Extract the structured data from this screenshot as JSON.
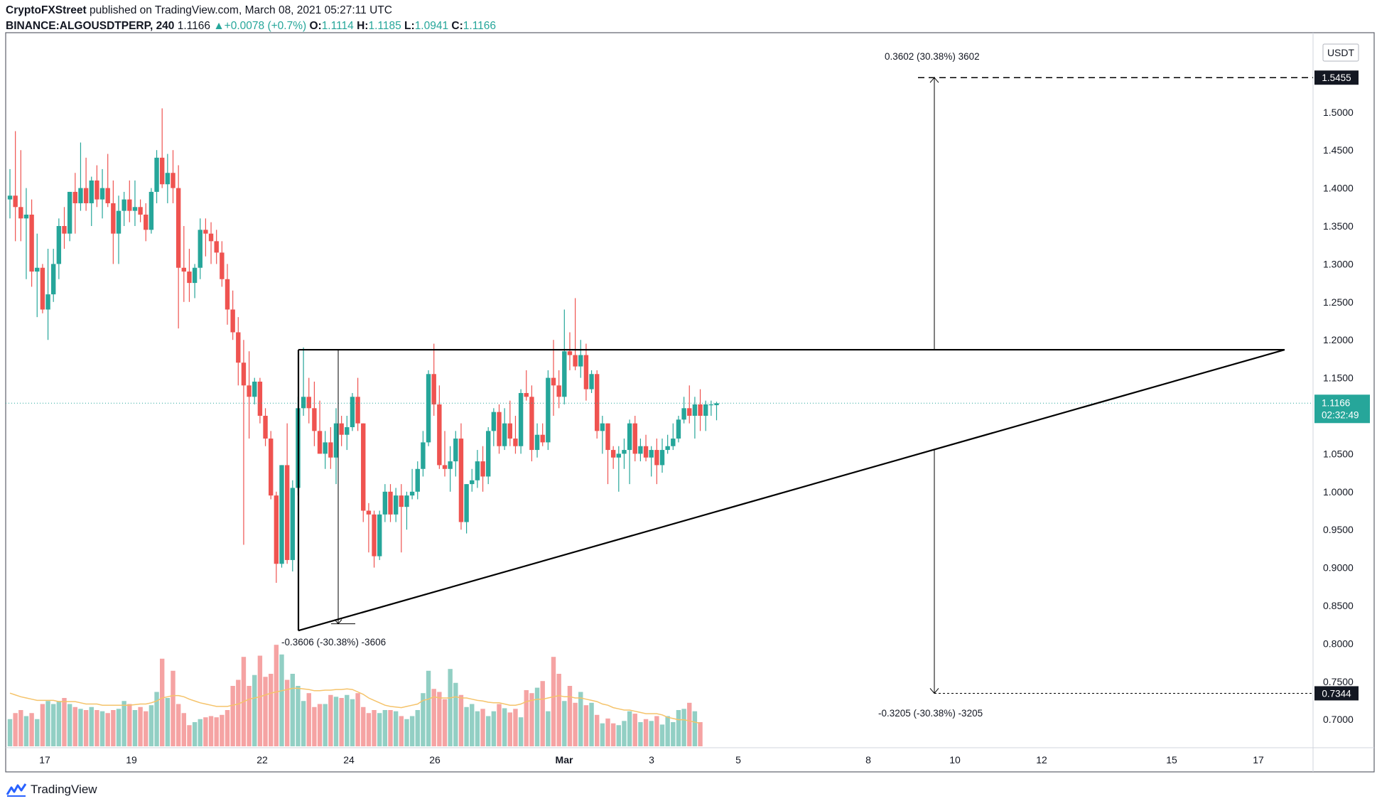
{
  "header": {
    "publisher": "CryptoFXStreet",
    "published_text": "published on TradingView.com, March 08, 2021 05:27:11 UTC",
    "symbol": "BINANCE:ALGOUSDTPERP, 240",
    "last": "1.1166",
    "change": "+0.0078 (+0.7%)",
    "o_label": "O:",
    "o": "1.1114",
    "h_label": "H:",
    "h": "1.1185",
    "l_label": "L:",
    "l": "1.0941",
    "c_label": "C:",
    "c": "1.1166"
  },
  "footer": {
    "brand": "TradingView"
  },
  "colors": {
    "up": "#26a69a",
    "down": "#ef5350",
    "up_vol": "#92cfc4",
    "down_vol": "#f5a3a3",
    "ma": "#f5c36a",
    "accent": "#26a69a"
  },
  "chart_data": {
    "type": "candlestick",
    "currency": "USDT",
    "y_ticks": [
      "1.5000",
      "1.4500",
      "1.4000",
      "1.3500",
      "1.3000",
      "1.2500",
      "1.2000",
      "1.1500",
      "1.0500",
      "1.0000",
      "0.9500",
      "0.9000",
      "0.8500",
      "0.8000",
      "0.7500",
      "0.7000"
    ],
    "x_ticks": [
      "17",
      "19",
      "22",
      "24",
      "26",
      "Mar",
      "3",
      "5",
      "8",
      "10",
      "12",
      "15",
      "17"
    ],
    "ylim": [
      0.655,
      1.595
    ],
    "current_price": "1.1166",
    "countdown": "02:32:49",
    "target_up_label": "1.5455",
    "target_down_label": "0.7344",
    "measure_up_text": "0.3602 (30.38%) 3602",
    "measure_flagpole_text": "-0.3606 (-30.38%) -3606",
    "measure_down_text": "-0.3205 (-30.38%) -3205",
    "candles": [
      {
        "o": 1.385,
        "h": 1.425,
        "l": 1.36,
        "c": 1.39
      },
      {
        "o": 1.39,
        "h": 1.475,
        "l": 1.33,
        "c": 1.375
      },
      {
        "o": 1.375,
        "h": 1.45,
        "l": 1.33,
        "c": 1.36
      },
      {
        "o": 1.36,
        "h": 1.4,
        "l": 1.28,
        "c": 1.365
      },
      {
        "o": 1.365,
        "h": 1.385,
        "l": 1.27,
        "c": 1.29
      },
      {
        "o": 1.29,
        "h": 1.34,
        "l": 1.23,
        "c": 1.295
      },
      {
        "o": 1.295,
        "h": 1.3,
        "l": 1.235,
        "c": 1.24
      },
      {
        "o": 1.24,
        "h": 1.32,
        "l": 1.2,
        "c": 1.26
      },
      {
        "o": 1.26,
        "h": 1.32,
        "l": 1.25,
        "c": 1.3
      },
      {
        "o": 1.3,
        "h": 1.36,
        "l": 1.28,
        "c": 1.35
      },
      {
        "o": 1.35,
        "h": 1.375,
        "l": 1.32,
        "c": 1.34
      },
      {
        "o": 1.34,
        "h": 1.395,
        "l": 1.33,
        "c": 1.395
      },
      {
        "o": 1.395,
        "h": 1.42,
        "l": 1.34,
        "c": 1.38
      },
      {
        "o": 1.38,
        "h": 1.46,
        "l": 1.37,
        "c": 1.4
      },
      {
        "o": 1.4,
        "h": 1.44,
        "l": 1.37,
        "c": 1.38
      },
      {
        "o": 1.38,
        "h": 1.415,
        "l": 1.35,
        "c": 1.41
      },
      {
        "o": 1.41,
        "h": 1.43,
        "l": 1.375,
        "c": 1.385
      },
      {
        "o": 1.385,
        "h": 1.425,
        "l": 1.36,
        "c": 1.4
      },
      {
        "o": 1.4,
        "h": 1.445,
        "l": 1.375,
        "c": 1.38
      },
      {
        "o": 1.38,
        "h": 1.41,
        "l": 1.3,
        "c": 1.34
      },
      {
        "o": 1.34,
        "h": 1.39,
        "l": 1.3,
        "c": 1.37
      },
      {
        "o": 1.37,
        "h": 1.395,
        "l": 1.35,
        "c": 1.385
      },
      {
        "o": 1.385,
        "h": 1.41,
        "l": 1.355,
        "c": 1.37
      },
      {
        "o": 1.37,
        "h": 1.41,
        "l": 1.35,
        "c": 1.375
      },
      {
        "o": 1.375,
        "h": 1.385,
        "l": 1.355,
        "c": 1.365
      },
      {
        "o": 1.365,
        "h": 1.38,
        "l": 1.33,
        "c": 1.345
      },
      {
        "o": 1.345,
        "h": 1.4,
        "l": 1.34,
        "c": 1.395
      },
      {
        "o": 1.395,
        "h": 1.45,
        "l": 1.38,
        "c": 1.44
      },
      {
        "o": 1.44,
        "h": 1.505,
        "l": 1.4,
        "c": 1.405
      },
      {
        "o": 1.405,
        "h": 1.445,
        "l": 1.38,
        "c": 1.42
      },
      {
        "o": 1.42,
        "h": 1.45,
        "l": 1.38,
        "c": 1.4
      },
      {
        "o": 1.4,
        "h": 1.43,
        "l": 1.215,
        "c": 1.295
      },
      {
        "o": 1.295,
        "h": 1.35,
        "l": 1.25,
        "c": 1.29
      },
      {
        "o": 1.29,
        "h": 1.32,
        "l": 1.25,
        "c": 1.275
      },
      {
        "o": 1.275,
        "h": 1.3,
        "l": 1.255,
        "c": 1.295
      },
      {
        "o": 1.295,
        "h": 1.36,
        "l": 1.28,
        "c": 1.345
      },
      {
        "o": 1.345,
        "h": 1.36,
        "l": 1.31,
        "c": 1.34
      },
      {
        "o": 1.34,
        "h": 1.355,
        "l": 1.3,
        "c": 1.33
      },
      {
        "o": 1.33,
        "h": 1.345,
        "l": 1.3,
        "c": 1.315
      },
      {
        "o": 1.315,
        "h": 1.33,
        "l": 1.27,
        "c": 1.28
      },
      {
        "o": 1.28,
        "h": 1.3,
        "l": 1.22,
        "c": 1.24
      },
      {
        "o": 1.24,
        "h": 1.265,
        "l": 1.2,
        "c": 1.21
      },
      {
        "o": 1.21,
        "h": 1.23,
        "l": 1.14,
        "c": 1.17
      },
      {
        "o": 1.17,
        "h": 1.2,
        "l": 0.93,
        "c": 1.14
      },
      {
        "o": 1.14,
        "h": 1.185,
        "l": 1.07,
        "c": 1.125
      },
      {
        "o": 1.125,
        "h": 1.15,
        "l": 1.115,
        "c": 1.145
      },
      {
        "o": 1.145,
        "h": 1.15,
        "l": 1.09,
        "c": 1.1
      },
      {
        "o": 1.1,
        "h": 1.11,
        "l": 1.06,
        "c": 1.07
      },
      {
        "o": 1.07,
        "h": 1.08,
        "l": 0.99,
        "c": 0.995
      },
      {
        "o": 0.995,
        "h": 1.0,
        "l": 0.88,
        "c": 0.905
      },
      {
        "o": 0.905,
        "h": 1.035,
        "l": 0.9,
        "c": 1.035
      },
      {
        "o": 1.035,
        "h": 1.09,
        "l": 0.905,
        "c": 0.91
      },
      {
        "o": 0.91,
        "h": 1.015,
        "l": 0.895,
        "c": 1.005
      },
      {
        "o": 1.005,
        "h": 1.125,
        "l": 0.995,
        "c": 1.11
      },
      {
        "o": 1.11,
        "h": 1.19,
        "l": 1.1,
        "c": 1.125
      },
      {
        "o": 1.125,
        "h": 1.15,
        "l": 1.09,
        "c": 1.11
      },
      {
        "o": 1.11,
        "h": 1.145,
        "l": 1.06,
        "c": 1.08
      },
      {
        "o": 1.08,
        "h": 1.12,
        "l": 1.05,
        "c": 1.05
      },
      {
        "o": 1.05,
        "h": 1.08,
        "l": 1.03,
        "c": 1.065
      },
      {
        "o": 1.065,
        "h": 1.085,
        "l": 1.03,
        "c": 1.045
      },
      {
        "o": 1.045,
        "h": 1.11,
        "l": 1.01,
        "c": 1.09
      },
      {
        "o": 1.09,
        "h": 1.1,
        "l": 1.06,
        "c": 1.075
      },
      {
        "o": 1.075,
        "h": 1.1,
        "l": 1.055,
        "c": 1.085
      },
      {
        "o": 1.085,
        "h": 1.13,
        "l": 1.08,
        "c": 1.125
      },
      {
        "o": 1.125,
        "h": 1.15,
        "l": 1.08,
        "c": 1.09
      },
      {
        "o": 1.09,
        "h": 1.09,
        "l": 0.96,
        "c": 0.975
      },
      {
        "o": 0.975,
        "h": 0.985,
        "l": 0.92,
        "c": 0.97
      },
      {
        "o": 0.97,
        "h": 0.975,
        "l": 0.9,
        "c": 0.915
      },
      {
        "o": 0.915,
        "h": 0.975,
        "l": 0.91,
        "c": 0.97
      },
      {
        "o": 0.97,
        "h": 1.01,
        "l": 0.96,
        "c": 1.0
      },
      {
        "o": 1.0,
        "h": 1.01,
        "l": 0.96,
        "c": 0.97
      },
      {
        "o": 0.97,
        "h": 1.005,
        "l": 0.96,
        "c": 0.995
      },
      {
        "o": 0.995,
        "h": 1.01,
        "l": 0.92,
        "c": 0.98
      },
      {
        "o": 0.98,
        "h": 1.0,
        "l": 0.95,
        "c": 0.995
      },
      {
        "o": 0.995,
        "h": 1.03,
        "l": 0.99,
        "c": 1.0
      },
      {
        "o": 1.0,
        "h": 1.04,
        "l": 0.99,
        "c": 1.03
      },
      {
        "o": 1.03,
        "h": 1.08,
        "l": 1.02,
        "c": 1.065
      },
      {
        "o": 1.065,
        "h": 1.16,
        "l": 1.06,
        "c": 1.155
      },
      {
        "o": 1.155,
        "h": 1.195,
        "l": 1.1,
        "c": 1.115
      },
      {
        "o": 1.115,
        "h": 1.14,
        "l": 1.03,
        "c": 1.035
      },
      {
        "o": 1.035,
        "h": 1.08,
        "l": 1.02,
        "c": 1.03
      },
      {
        "o": 1.03,
        "h": 1.06,
        "l": 1.0,
        "c": 1.04
      },
      {
        "o": 1.04,
        "h": 1.08,
        "l": 1.02,
        "c": 1.07
      },
      {
        "o": 1.07,
        "h": 1.09,
        "l": 0.95,
        "c": 0.96
      },
      {
        "o": 0.96,
        "h": 1.01,
        "l": 0.945,
        "c": 1.01
      },
      {
        "o": 1.01,
        "h": 1.03,
        "l": 1.0,
        "c": 1.015
      },
      {
        "o": 1.015,
        "h": 1.055,
        "l": 1.005,
        "c": 1.04
      },
      {
        "o": 1.04,
        "h": 1.06,
        "l": 1.0,
        "c": 1.02
      },
      {
        "o": 1.02,
        "h": 1.085,
        "l": 1.01,
        "c": 1.08
      },
      {
        "o": 1.08,
        "h": 1.11,
        "l": 1.06,
        "c": 1.105
      },
      {
        "o": 1.105,
        "h": 1.115,
        "l": 1.05,
        "c": 1.06
      },
      {
        "o": 1.06,
        "h": 1.11,
        "l": 1.055,
        "c": 1.09
      },
      {
        "o": 1.09,
        "h": 1.12,
        "l": 1.06,
        "c": 1.07
      },
      {
        "o": 1.07,
        "h": 1.1,
        "l": 1.05,
        "c": 1.06
      },
      {
        "o": 1.06,
        "h": 1.135,
        "l": 1.05,
        "c": 1.13
      },
      {
        "o": 1.13,
        "h": 1.16,
        "l": 1.12,
        "c": 1.125
      },
      {
        "o": 1.125,
        "h": 1.14,
        "l": 1.04,
        "c": 1.055
      },
      {
        "o": 1.055,
        "h": 1.09,
        "l": 1.045,
        "c": 1.075
      },
      {
        "o": 1.075,
        "h": 1.09,
        "l": 1.06,
        "c": 1.065
      },
      {
        "o": 1.065,
        "h": 1.16,
        "l": 1.055,
        "c": 1.15
      },
      {
        "o": 1.15,
        "h": 1.2,
        "l": 1.1,
        "c": 1.14
      },
      {
        "o": 1.14,
        "h": 1.16,
        "l": 1.11,
        "c": 1.125
      },
      {
        "o": 1.125,
        "h": 1.24,
        "l": 1.115,
        "c": 1.185
      },
      {
        "o": 1.185,
        "h": 1.21,
        "l": 1.16,
        "c": 1.18
      },
      {
        "o": 1.18,
        "h": 1.255,
        "l": 1.16,
        "c": 1.165
      },
      {
        "o": 1.165,
        "h": 1.2,
        "l": 1.15,
        "c": 1.18
      },
      {
        "o": 1.18,
        "h": 1.195,
        "l": 1.12,
        "c": 1.135
      },
      {
        "o": 1.135,
        "h": 1.16,
        "l": 1.13,
        "c": 1.155
      },
      {
        "o": 1.155,
        "h": 1.16,
        "l": 1.07,
        "c": 1.08
      },
      {
        "o": 1.08,
        "h": 1.1,
        "l": 1.05,
        "c": 1.09
      },
      {
        "o": 1.09,
        "h": 1.09,
        "l": 1.01,
        "c": 1.055
      },
      {
        "o": 1.055,
        "h": 1.06,
        "l": 1.03,
        "c": 1.045
      },
      {
        "o": 1.045,
        "h": 1.06,
        "l": 1.0,
        "c": 1.05
      },
      {
        "o": 1.05,
        "h": 1.07,
        "l": 1.03,
        "c": 1.055
      },
      {
        "o": 1.055,
        "h": 1.095,
        "l": 1.01,
        "c": 1.09
      },
      {
        "o": 1.09,
        "h": 1.1,
        "l": 1.04,
        "c": 1.05
      },
      {
        "o": 1.05,
        "h": 1.07,
        "l": 1.04,
        "c": 1.06
      },
      {
        "o": 1.06,
        "h": 1.075,
        "l": 1.04,
        "c": 1.045
      },
      {
        "o": 1.045,
        "h": 1.06,
        "l": 1.02,
        "c": 1.055
      },
      {
        "o": 1.055,
        "h": 1.07,
        "l": 1.01,
        "c": 1.035
      },
      {
        "o": 1.035,
        "h": 1.07,
        "l": 1.025,
        "c": 1.055
      },
      {
        "o": 1.055,
        "h": 1.075,
        "l": 1.05,
        "c": 1.06
      },
      {
        "o": 1.06,
        "h": 1.09,
        "l": 1.055,
        "c": 1.07
      },
      {
        "o": 1.07,
        "h": 1.1,
        "l": 1.065,
        "c": 1.095
      },
      {
        "o": 1.095,
        "h": 1.125,
        "l": 1.09,
        "c": 1.11
      },
      {
        "o": 1.11,
        "h": 1.14,
        "l": 1.09,
        "c": 1.1
      },
      {
        "o": 1.1,
        "h": 1.125,
        "l": 1.07,
        "c": 1.115
      },
      {
        "o": 1.115,
        "h": 1.135,
        "l": 1.08,
        "c": 1.1
      },
      {
        "o": 1.1,
        "h": 1.12,
        "l": 1.08,
        "c": 1.115
      },
      {
        "o": 1.115,
        "h": 1.12,
        "l": 1.1,
        "c": 1.115
      },
      {
        "o": 1.114,
        "h": 1.1185,
        "l": 1.0941,
        "c": 1.1166
      }
    ],
    "volume": {
      "ylim": [
        0,
        195
      ],
      "values": [
        45,
        55,
        60,
        50,
        55,
        45,
        70,
        75,
        70,
        75,
        80,
        70,
        65,
        62,
        60,
        65,
        60,
        58,
        55,
        60,
        62,
        75,
        70,
        60,
        65,
        58,
        68,
        90,
        145,
        80,
        125,
        70,
        55,
        35,
        40,
        45,
        48,
        50,
        48,
        52,
        60,
        100,
        110,
        148,
        100,
        118,
        150,
        115,
        120,
        168,
        152,
        110,
        120,
        100,
        75,
        88,
        65,
        70,
        70,
        85,
        82,
        80,
        85,
        78,
        88,
        65,
        55,
        60,
        55,
        60,
        60,
        58,
        50,
        45,
        50,
        60,
        88,
        125,
        95,
        90,
        78,
        128,
        105,
        85,
        65,
        70,
        58,
        62,
        50,
        58,
        70,
        63,
        56,
        62,
        48,
        93,
        88,
        97,
        108,
        58,
        148,
        120,
        75,
        100,
        72,
        90,
        68,
        72,
        52,
        38,
        46,
        38,
        35,
        42,
        58,
        54,
        40,
        45,
        42,
        50,
        36,
        50,
        40,
        60,
        62,
        72,
        58,
        40
      ],
      "ma_values": [
        88,
        85,
        82,
        80,
        78,
        76,
        76,
        76,
        76,
        74,
        74,
        74,
        74,
        72,
        70,
        70,
        70,
        68,
        68,
        68,
        68,
        68,
        68,
        69,
        70,
        70,
        72,
        75,
        80,
        82,
        84,
        84,
        82,
        78,
        75,
        72,
        70,
        68,
        66,
        66,
        66,
        68,
        70,
        74,
        78,
        80,
        82,
        85,
        88,
        90,
        92,
        94,
        96,
        96,
        95,
        94,
        92,
        92,
        93,
        93,
        94,
        94,
        95,
        94,
        90,
        86,
        80,
        76,
        72,
        68,
        66,
        65,
        64,
        66,
        68,
        70,
        76,
        78,
        82,
        80,
        80,
        80,
        82,
        80,
        80,
        78,
        76,
        75,
        73,
        72,
        72,
        70,
        68,
        68,
        70,
        74,
        76,
        78,
        78,
        80,
        82,
        84,
        82,
        82,
        80,
        80,
        78,
        76,
        74,
        70,
        68,
        64,
        62,
        60,
        60,
        58,
        56,
        54,
        54,
        54,
        52,
        48,
        46,
        44,
        44,
        42,
        40,
        38
      ]
    }
  }
}
